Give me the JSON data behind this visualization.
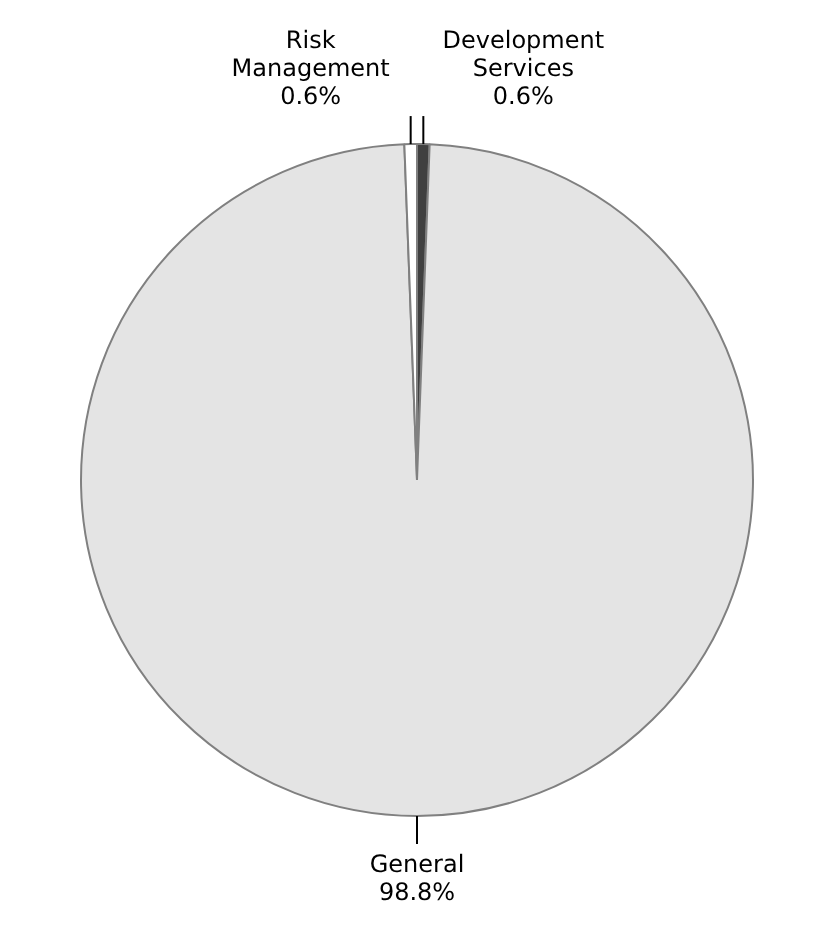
{
  "chart_data": {
    "type": "pie",
    "categories": [
      "Development Services",
      "General",
      "Risk Management"
    ],
    "values": [
      0.6,
      98.8,
      0.6
    ],
    "value_labels": [
      "0.6%",
      "98.8%",
      "0.6%"
    ],
    "colors": [
      "#404040",
      "#e4e4e4",
      "#ffffff"
    ],
    "legend": false
  }
}
